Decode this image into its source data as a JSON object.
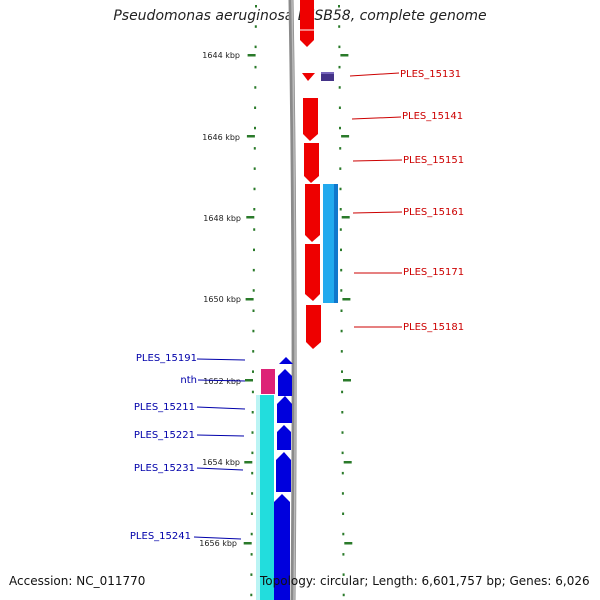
{
  "title": "Pseudomonas aeruginosa LESB58, complete genome",
  "footer": {
    "accession": "Accession: NC_011770",
    "topology": "Topology: circular; Length: 6,601,757 bp; Genes: 6,026"
  },
  "scale_labels": [
    "1644 kbp",
    "1646 kbp",
    "1648 kbp",
    "1650 kbp",
    "1652 kbp",
    "1654 kbp",
    "1656 kbp"
  ],
  "right_strand_genes": [
    "PLES_15131",
    "PLES_15141",
    "PLES_15151",
    "PLES_15161",
    "PLES_15171",
    "PLES_15181"
  ],
  "left_strand_genes": [
    "PLES_15191",
    "nth",
    "PLES_15211",
    "PLES_15221",
    "PLES_15231",
    "PLES_15241"
  ],
  "colors": {
    "forward_cds": "#ee0000",
    "reverse_cds": "#0000dd",
    "rna_right": "#22aaee",
    "rna_left": "#22dddd",
    "magenta": "#dd2277",
    "purple": "#443388",
    "backbone": "#888888",
    "tick": "#2a7a2a"
  }
}
